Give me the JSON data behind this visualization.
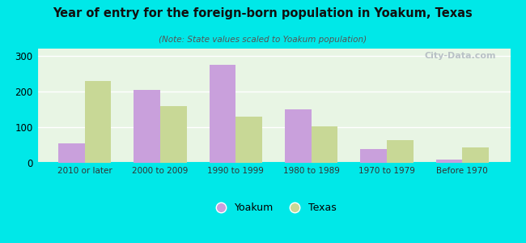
{
  "title": "Year of entry for the foreign-born population in Yoakum, Texas",
  "subtitle": "(Note: State values scaled to Yoakum population)",
  "categories": [
    "2010 or later",
    "2000 to 2009",
    "1990 to 1999",
    "1980 to 1989",
    "1970 to 1979",
    "Before 1970"
  ],
  "yoakum_values": [
    55,
    205,
    275,
    150,
    38,
    8
  ],
  "texas_values": [
    230,
    160,
    130,
    103,
    63,
    42
  ],
  "yoakum_color": "#c9a0dc",
  "texas_color": "#c8d896",
  "background_outer": "#00e8e8",
  "ylim": [
    0,
    320
  ],
  "yticks": [
    0,
    100,
    200,
    300
  ],
  "bar_width": 0.35,
  "watermark": "City-Data.com",
  "legend_yoakum": "Yoakum",
  "legend_texas": "Texas"
}
